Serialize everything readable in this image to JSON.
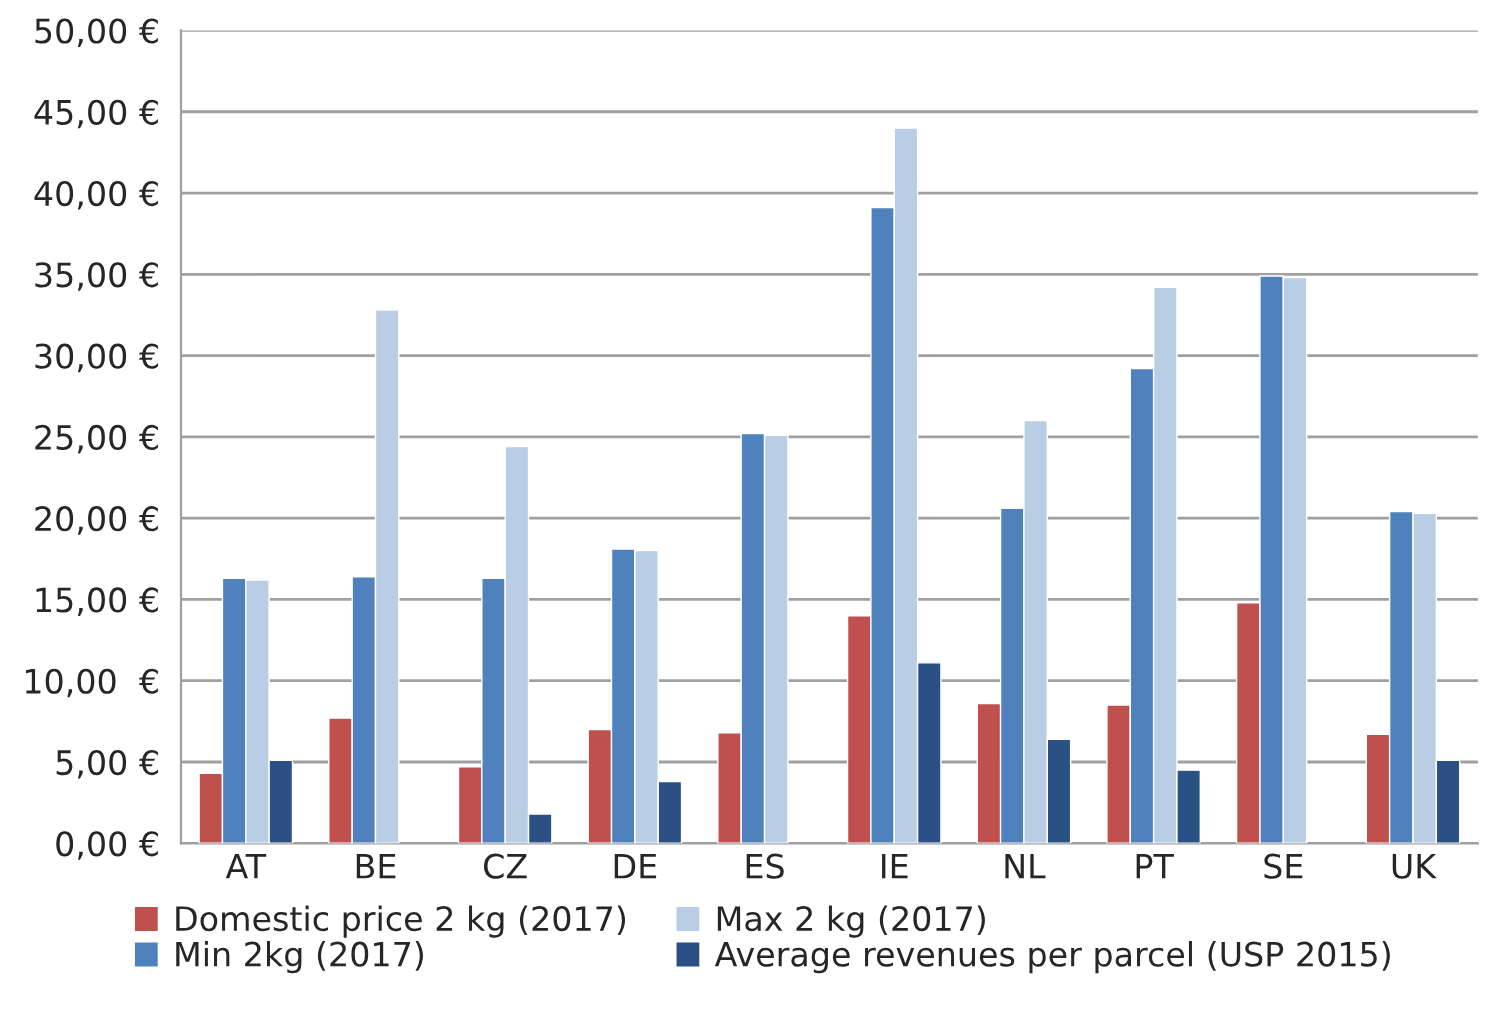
{
  "chart_data": {
    "type": "bar",
    "categories": [
      "AT",
      "BE",
      "CZ",
      "DE",
      "ES",
      "IE",
      "NL",
      "PT",
      "SE",
      "UK"
    ],
    "series": [
      {
        "name": "Domestic price 2 kg (2017)",
        "color": "#c0504d",
        "values": [
          4.3,
          7.7,
          4.7,
          7.0,
          6.8,
          14.0,
          8.6,
          8.5,
          14.8,
          6.7
        ]
      },
      {
        "name": "Min 2kg (2017)",
        "color": "#4f81bd",
        "values": [
          16.3,
          16.4,
          16.3,
          18.1,
          25.2,
          39.1,
          20.6,
          29.2,
          34.9,
          20.4
        ]
      },
      {
        "name": "Max 2 kg (2017)",
        "color": "#b9cde5",
        "values": [
          16.2,
          32.8,
          24.4,
          18.0,
          25.1,
          44.0,
          26.0,
          34.2,
          34.8,
          20.3
        ]
      },
      {
        "name": "Average revenues per parcel (USP 2015)",
        "color": "#2a5086",
        "values": [
          5.1,
          null,
          1.8,
          3.8,
          null,
          11.1,
          6.4,
          4.5,
          null,
          5.1
        ]
      }
    ],
    "ylim": [
      0,
      50
    ],
    "yticks": [
      {
        "value": 0,
        "label": "0,00 €"
      },
      {
        "value": 5,
        "label": "5,00 €"
      },
      {
        "value": 10,
        "label": "10,00  €"
      },
      {
        "value": 15,
        "label": "15,00 €"
      },
      {
        "value": 20,
        "label": "20,00 €"
      },
      {
        "value": 25,
        "label": "25,00 €"
      },
      {
        "value": 30,
        "label": "30,00 €"
      },
      {
        "value": 35,
        "label": "35,00 €"
      },
      {
        "value": 40,
        "label": "40,00 €"
      },
      {
        "value": 45,
        "label": "45,00 €"
      },
      {
        "value": 50,
        "label": "50,00 €"
      }
    ],
    "grid": "y",
    "legend": "bottom"
  }
}
